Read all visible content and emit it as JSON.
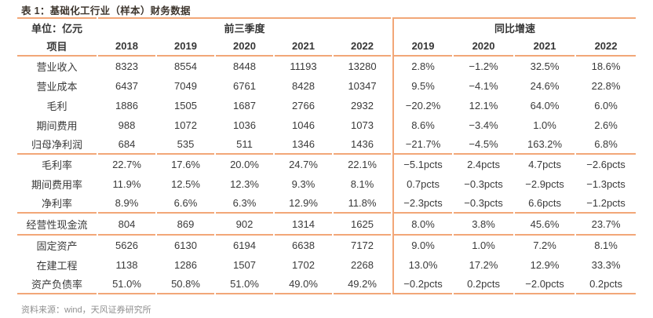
{
  "title": "表 1：基础化工行业（样本）财务数据",
  "source_note": "资料来源：wind，天风证券研究所",
  "colors": {
    "table_border": "#F2A778",
    "title_text": "#3E362E",
    "body_text": "#3A3A3A",
    "source_text": "#8F8F8F"
  },
  "table": {
    "unit_label": "单位：亿元",
    "group_header_left": "前三季度",
    "group_header_right": "同比增速",
    "item_header": "项目",
    "left_years": [
      "2018",
      "2019",
      "2020",
      "2021",
      "2022"
    ],
    "right_years": [
      "2019",
      "2020",
      "2021",
      "2022"
    ],
    "sections": [
      {
        "rows": [
          {
            "label": "营业收入",
            "values": [
              "8323",
              "8554",
              "8448",
              "11193",
              "13280"
            ],
            "growth": [
              "2.8%",
              "−1.2%",
              "32.5%",
              "18.6%"
            ]
          },
          {
            "label": "营业成本",
            "values": [
              "6437",
              "7049",
              "6761",
              "8428",
              "10347"
            ],
            "growth": [
              "9.5%",
              "−4.1%",
              "24.6%",
              "22.8%"
            ]
          },
          {
            "label": "毛利",
            "values": [
              "1886",
              "1505",
              "1687",
              "2766",
              "2932"
            ],
            "growth": [
              "−20.2%",
              "12.1%",
              "64.0%",
              "6.0%"
            ]
          },
          {
            "label": "期间费用",
            "values": [
              "988",
              "1072",
              "1036",
              "1046",
              "1073"
            ],
            "growth": [
              "8.6%",
              "−3.4%",
              "1.0%",
              "2.6%"
            ]
          },
          {
            "label": "归母净利润",
            "values": [
              "684",
              "535",
              "511",
              "1346",
              "1436"
            ],
            "growth": [
              "−21.7%",
              "−4.5%",
              "163.2%",
              "6.8%"
            ]
          }
        ]
      },
      {
        "rows": [
          {
            "label": "毛利率",
            "values": [
              "22.7%",
              "17.6%",
              "20.0%",
              "24.7%",
              "22.1%"
            ],
            "growth": [
              "−5.1pcts",
              "2.4pcts",
              "4.7pcts",
              "−2.6pcts"
            ]
          },
          {
            "label": "期间费用率",
            "values": [
              "11.9%",
              "12.5%",
              "12.3%",
              "9.3%",
              "8.1%"
            ],
            "growth": [
              "0.7pcts",
              "−0.3pcts",
              "−2.9pcts",
              "−1.3pcts"
            ]
          },
          {
            "label": "净利率",
            "values": [
              "8.9%",
              "6.6%",
              "6.3%",
              "12.9%",
              "11.8%"
            ],
            "growth": [
              "−2.3pcts",
              "−0.3pcts",
              "6.6pcts",
              "−1.2pcts"
            ]
          }
        ]
      },
      {
        "rows": [
          {
            "label": "经营性现金流",
            "values": [
              "804",
              "869",
              "902",
              "1314",
              "1625"
            ],
            "growth": [
              "8.0%",
              "3.8%",
              "45.6%",
              "23.7%"
            ]
          }
        ]
      },
      {
        "rows": [
          {
            "label": "固定资产",
            "values": [
              "5626",
              "6130",
              "6194",
              "6638",
              "7172"
            ],
            "growth": [
              "9.0%",
              "1.0%",
              "7.2%",
              "8.1%"
            ]
          },
          {
            "label": "在建工程",
            "values": [
              "1138",
              "1286",
              "1507",
              "1702",
              "2268"
            ],
            "growth": [
              "13.0%",
              "17.2%",
              "12.9%",
              "33.3%"
            ]
          },
          {
            "label": "资产负债率",
            "values": [
              "51.0%",
              "50.8%",
              "51.0%",
              "49.0%",
              "49.2%"
            ],
            "growth": [
              "−0.2pcts",
              "0.2pcts",
              "−2.0pcts",
              "0.2pcts"
            ]
          }
        ]
      }
    ]
  }
}
